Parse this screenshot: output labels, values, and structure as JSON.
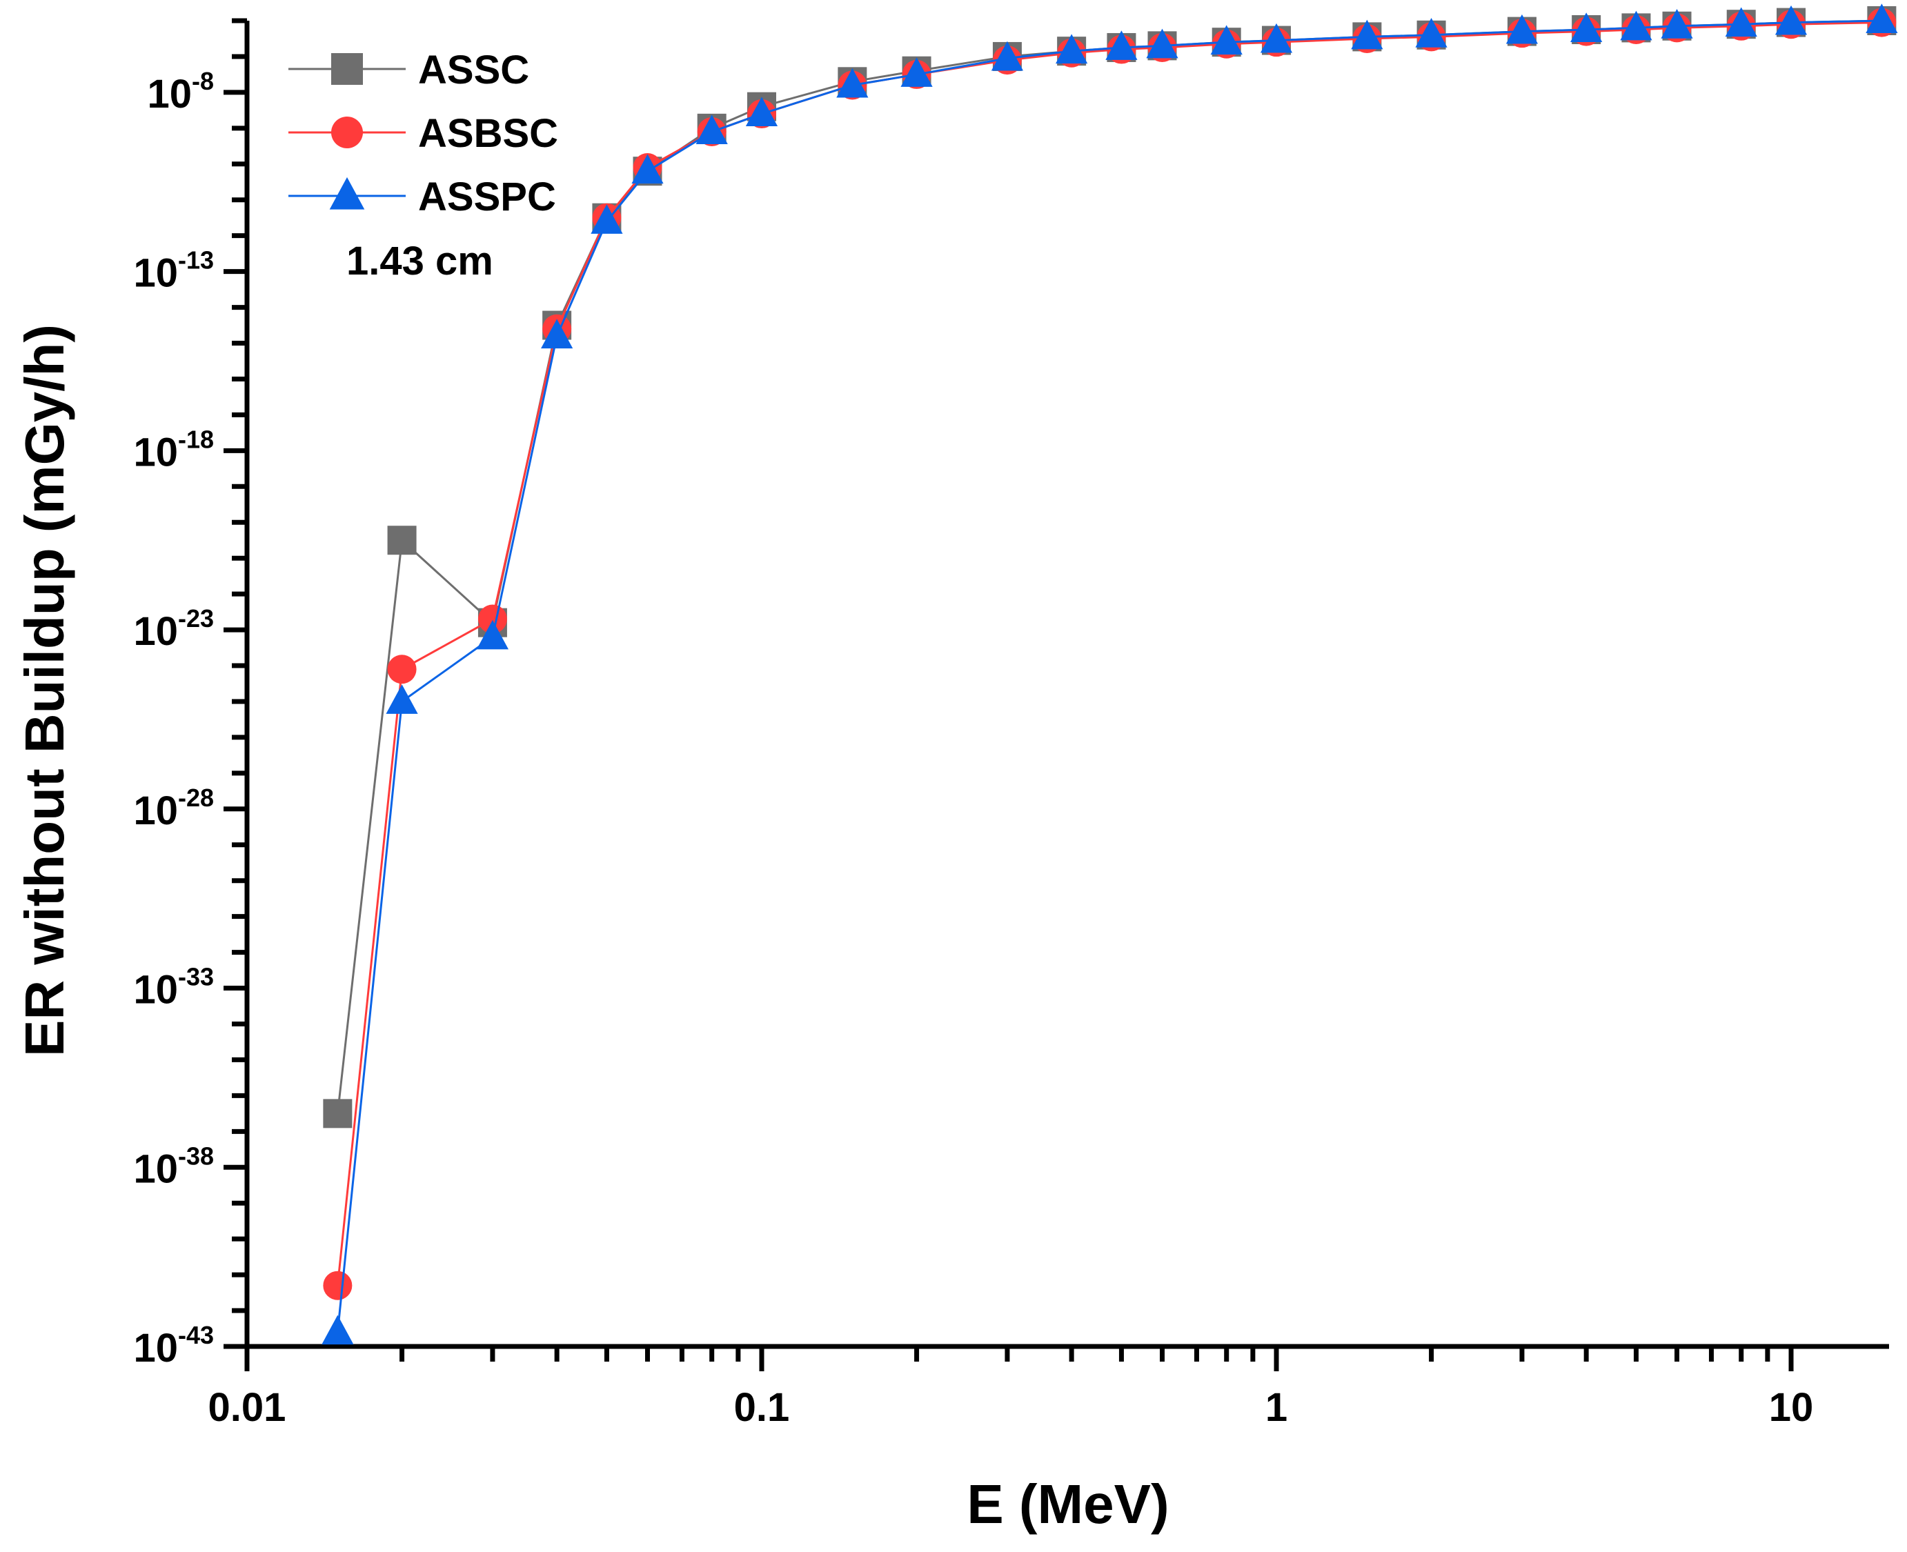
{
  "chart_data": {
    "type": "line",
    "title": "",
    "xlabel": "E (MeV)",
    "ylabel": "ER without Buildup (mGy/h)",
    "xscale": "log",
    "yscale": "log",
    "xlim": [
      0.01,
      15.5
    ],
    "ylim_exp": [
      -43,
      -6
    ],
    "x_ticks": [
      0.01,
      0.1,
      1,
      10
    ],
    "x_tick_labels": [
      "0.01",
      "0.1",
      "1",
      "10"
    ],
    "y_ticks_exp": [
      -43,
      -38,
      -33,
      -28,
      -23,
      -18,
      -13,
      -8
    ],
    "y_tick_base": "10",
    "y_tick_exponents": [
      "-43",
      "-38",
      "-33",
      "-28",
      "-23",
      "-18",
      "-13",
      "-8"
    ],
    "annotation": "1.43 cm",
    "legend_position": "top-left",
    "x": [
      0.015,
      0.02,
      0.03,
      0.04,
      0.05,
      0.06,
      0.08,
      0.1,
      0.15,
      0.2,
      0.3,
      0.4,
      0.5,
      0.6,
      0.8,
      1,
      1.5,
      2,
      3,
      4,
      5,
      6,
      8,
      10,
      15
    ],
    "series": [
      {
        "name": "ASSC",
        "color": "#6e6e6e",
        "marker": "square",
        "log10_values": [
          -36.5,
          -20.5,
          -22.8,
          -14.5,
          -11.5,
          -10.2,
          -9.0,
          -8.4,
          -7.7,
          -7.4,
          -7.0,
          -6.85,
          -6.75,
          -6.7,
          -6.6,
          -6.55,
          -6.45,
          -6.4,
          -6.3,
          -6.25,
          -6.2,
          -6.15,
          -6.1,
          -6.05,
          -6.0
        ]
      },
      {
        "name": "ASBSC",
        "color": "#ff3b3b",
        "marker": "circle",
        "log10_values": [
          -41.3,
          -24.1,
          -22.7,
          -14.6,
          -11.5,
          -10.1,
          -9.1,
          -8.6,
          -7.8,
          -7.5,
          -7.1,
          -6.9,
          -6.8,
          -6.75,
          -6.65,
          -6.6,
          -6.5,
          -6.45,
          -6.35,
          -6.3,
          -6.25,
          -6.2,
          -6.15,
          -6.1,
          -6.05
        ]
      },
      {
        "name": "ASSPC",
        "color": "#0a64e6",
        "marker": "triangle",
        "log10_values": [
          -42.6,
          -25.0,
          -23.2,
          -14.8,
          -11.6,
          -10.2,
          -9.1,
          -8.6,
          -7.8,
          -7.5,
          -7.05,
          -6.85,
          -6.75,
          -6.7,
          -6.6,
          -6.55,
          -6.45,
          -6.4,
          -6.3,
          -6.25,
          -6.2,
          -6.15,
          -6.1,
          -6.05,
          -6.0
        ]
      }
    ]
  }
}
